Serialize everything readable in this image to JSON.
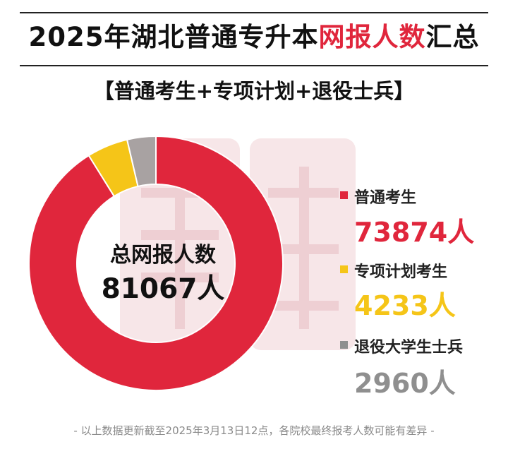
{
  "header": {
    "title_main": "2025年湖北普通专升本",
    "title_highlight": "网报人数",
    "title_tail": "汇总",
    "subtitle": "【普通考生+专项计划+退役士兵】"
  },
  "center": {
    "label": "总网报人数",
    "total": "81067人"
  },
  "legend": [
    {
      "name": "普通考生",
      "value_text": "73874人",
      "color": "#e0263c"
    },
    {
      "name": "专项计划考生",
      "value_text": "4233人",
      "color": "#f5c518"
    },
    {
      "name": "退役大学生士兵",
      "value_text": "2960人",
      "color": "#8f8f8f"
    }
  ],
  "footer": "- 以上数据更新截至2025年3月13日12点，各院校最终报考人数可能有差异 -",
  "chart_data": {
    "type": "pie",
    "variant": "donut",
    "title": "2025年湖北普通专升本网报人数汇总",
    "subtitle": "【普通考生+专项计划+退役士兵】",
    "total": 81067,
    "unit": "人",
    "categories": [
      "普通考生",
      "专项计划考生",
      "退役大学生士兵"
    ],
    "values": [
      73874,
      4233,
      2960
    ],
    "colors": [
      "#e0263c",
      "#f5c518",
      "#a8a2a2"
    ],
    "legend_position": "right"
  }
}
